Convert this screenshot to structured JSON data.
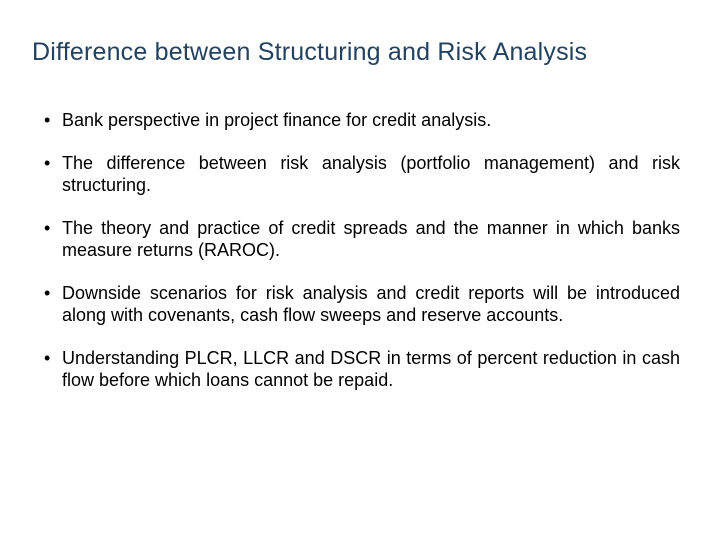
{
  "slide": {
    "title": "Difference between Structuring and Risk Analysis",
    "title_color": "#22425f",
    "title_fontsize": 25,
    "body_color": "#000000",
    "body_fontsize": 18,
    "background_color": "#ffffff",
    "bullets": [
      "Bank perspective in project finance for credit analysis.",
      "The difference between risk analysis (portfolio management) and risk structuring.",
      "The theory and practice of credit spreads and the manner in which banks measure returns (RAROC).",
      "Downside scenarios for risk analysis and credit reports will be introduced along with covenants, cash flow sweeps and reserve accounts.",
      "Understanding PLCR, LLCR and DSCR in terms of percent reduction in cash flow before which loans cannot be repaid."
    ]
  }
}
